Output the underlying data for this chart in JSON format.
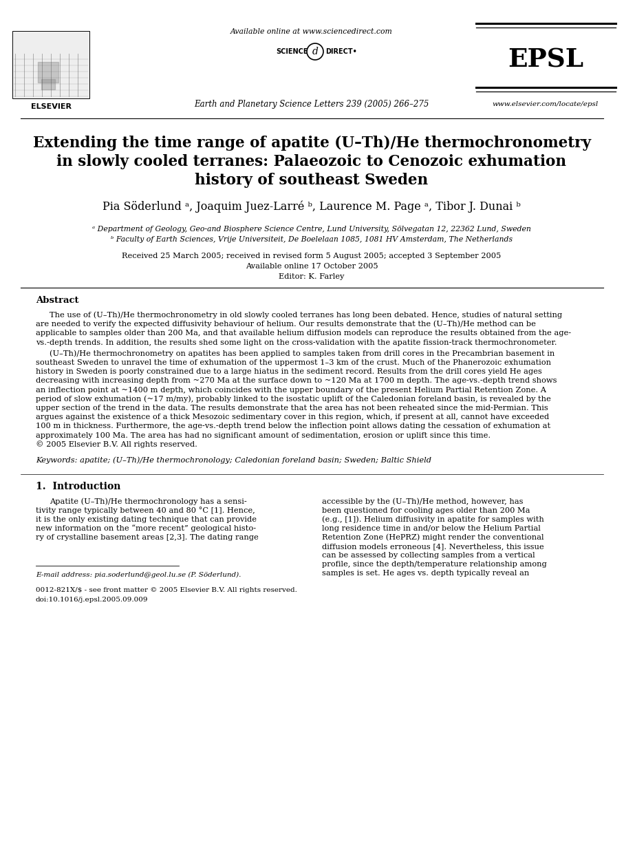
{
  "bg_color": "#ffffff",
  "header_available": "Available online at www.sciencedirect.com",
  "journal_info": "Earth and Planetary Science Letters 239 (2005) 266–275",
  "epsl_text": "EPSL",
  "website": "www.elsevier.com/locate/epsl",
  "title_line1": "Extending the time range of apatite (U–Th)/He thermochronometry",
  "title_line2": "in slowly cooled terranes: Palaeozoic to Cenozoic exhumation",
  "title_line3": "history of southeast Sweden",
  "authors_line": "Pia Söderlund ᵃ, Joaquim Juez-Larré ᵇ, Laurence M. Page ᵃ, Tibor J. Dunai ᵇ",
  "affil_a": "ᵃ Department of Geology, Geo-and Biosphere Science Centre, Lund University, Sölvegatan 12, 22362 Lund, Sweden",
  "affil_b": "ᵇ Faculty of Earth Sciences, Vrije Universiteit, De Boelelaan 1085, 1081 HV Amsterdam, The Netherlands",
  "dates1": "Received 25 March 2005; received in revised form 5 August 2005; accepted 3 September 2005",
  "dates2": "Available online 17 October 2005",
  "editor": "Editor: K. Farley",
  "abstract_title": "Abstract",
  "abstract_p1_lines": [
    "The use of (U–Th)/He thermochronometry in old slowly cooled terranes has long been debated. Hence, studies of natural setting",
    "are needed to verify the expected diffusivity behaviour of helium. Our results demonstrate that the (U–Th)/He method can be",
    "applicable to samples older than 200 Ma, and that available helium diffusion models can reproduce the results obtained from the age-",
    "vs.-depth trends. In addition, the results shed some light on the cross-validation with the apatite fission-track thermochronometer."
  ],
  "abstract_p2_lines": [
    "(U–Th)/He thermochronometry on apatites has been applied to samples taken from drill cores in the Precambrian basement in",
    "southeast Sweden to unravel the time of exhumation of the uppermost 1–3 km of the crust. Much of the Phanerozoic exhumation",
    "history in Sweden is poorly constrained due to a large hiatus in the sediment record. Results from the drill cores yield He ages",
    "decreasing with increasing depth from ~270 Ma at the surface down to ~120 Ma at 1700 m depth. The age-vs.-depth trend shows",
    "an inflection point at ~1400 m depth, which coincides with the upper boundary of the present Helium Partial Retention Zone. A",
    "period of slow exhumation (~17 m/my), probably linked to the isostatic uplift of the Caledonian foreland basin, is revealed by the",
    "upper section of the trend in the data. The results demonstrate that the area has not been reheated since the mid-Permian. This",
    "argues against the existence of a thick Mesozoic sedimentary cover in this region, which, if present at all, cannot have exceeded",
    "100 m in thickness. Furthermore, the age-vs.-depth trend below the inflection point allows dating the cessation of exhumation at",
    "approximately 100 Ma. The area has had no significant amount of sedimentation, erosion or uplift since this time.",
    "© 2005 Elsevier B.V. All rights reserved."
  ],
  "keywords": "Keywords: apatite; (U–Th)/He thermochronology; Caledonian foreland basin; Sweden; Baltic Shield",
  "section1_title": "1.  Introduction",
  "intro_col1_lines": [
    "Apatite (U–Th)/He thermochronology has a sensi-",
    "tivity range typically between 40 and 80 °C [1]. Hence,",
    "it is the only existing dating technique that can provide",
    "new information on the “more recent” geological histo-",
    "ry of crystalline basement areas [2,3]. The dating range"
  ],
  "intro_col2_lines": [
    "accessible by the (U–Th)/He method, however, has",
    "been questioned for cooling ages older than 200 Ma",
    "(e.g., [1]). Helium diffusivity in apatite for samples with",
    "long residence time in and/or below the Helium Partial",
    "Retention Zone (HePRZ) might render the conventional",
    "diffusion models erroneous [4]. Nevertheless, this issue",
    "can be assessed by collecting samples from a vertical",
    "profile, since the depth/temperature relationship among",
    "samples is set. He ages vs. depth typically reveal an"
  ],
  "footnote": "E-mail address: pia.soderlund@geol.lu.se (P. Söderlund).",
  "issn_line": "0012-821X/$ - see front matter © 2005 Elsevier B.V. All rights reserved.",
  "doi_line": "doi:10.1016/j.epsl.2005.09.009"
}
